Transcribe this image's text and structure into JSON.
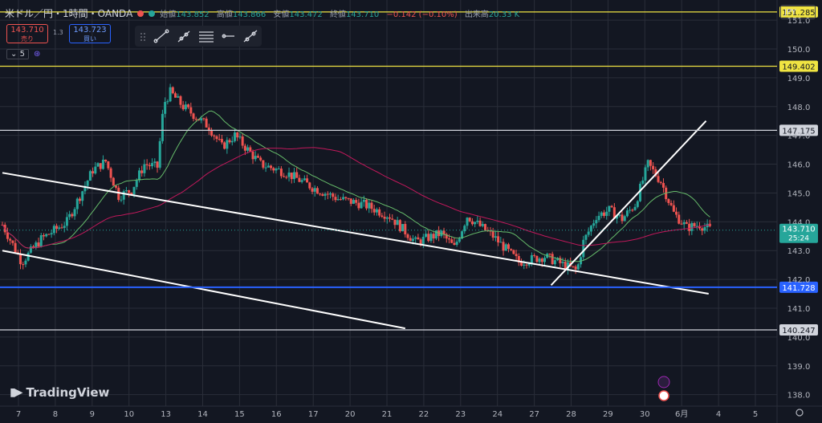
{
  "header": {
    "symbol": "米ドル／円・1時間・OANDA",
    "open_label": "始値",
    "open": "143.852",
    "high_label": "高値",
    "high": "143.866",
    "low_label": "安値",
    "low": "143.472",
    "close_label": "終値",
    "close": "143.710",
    "change": "−0.142 (−0.10%)",
    "volume_label": "出来高",
    "volume": "20.33 K",
    "sell_price": "143.710",
    "sell_label": "売り",
    "buy_price": "143.723",
    "buy_label": "買い",
    "spread": "1.3",
    "indicator_value": "5",
    "currency": "JPY"
  },
  "logo_text": "TradingView",
  "colors": {
    "up": "#26a69a",
    "down": "#ef5350",
    "bg": "#131722",
    "grid": "#2a2e39",
    "ma_short": "#66bb6a",
    "ma_long": "#c2185b",
    "yellow": "#f0e442",
    "blue": "#2962ff"
  },
  "chart_data": {
    "type": "candlestick",
    "ylim": [
      137.6,
      151.7
    ],
    "yticks": [
      138.0,
      139.0,
      140.0,
      141.0,
      142.0,
      143.0,
      144.0,
      145.0,
      146.0,
      147.0,
      148.0,
      149.0,
      150.0,
      151.0
    ],
    "x_tick_labels": [
      "7",
      "8",
      "9",
      "10",
      "13",
      "14",
      "15",
      "16",
      "17",
      "20",
      "21",
      "22",
      "23",
      "24",
      "27",
      "28",
      "29",
      "30",
      "6月",
      "4",
      "5"
    ],
    "current_price": {
      "value": 143.71,
      "label": "143.710",
      "countdown": "25:24"
    },
    "price_path": [
      [
        0,
        143.9
      ],
      [
        1.5,
        142.6
      ],
      [
        3,
        143.4
      ],
      [
        5,
        144.0
      ],
      [
        7,
        145.8
      ],
      [
        8,
        146.1
      ],
      [
        9,
        144.9
      ],
      [
        10,
        145.1
      ],
      [
        11,
        146.0
      ],
      [
        12,
        145.9
      ],
      [
        12.5,
        148.1
      ],
      [
        13,
        148.5
      ],
      [
        14,
        148.0
      ],
      [
        16,
        147.3
      ],
      [
        17,
        146.6
      ],
      [
        18,
        147.0
      ],
      [
        20,
        146.0
      ],
      [
        22,
        145.7
      ],
      [
        24,
        145.2
      ],
      [
        26,
        144.8
      ],
      [
        28,
        144.6
      ],
      [
        30,
        144.2
      ],
      [
        32,
        143.3
      ],
      [
        34,
        143.6
      ],
      [
        35,
        143.1
      ],
      [
        36,
        144.2
      ],
      [
        38,
        143.5
      ],
      [
        40,
        142.6
      ],
      [
        42,
        142.8
      ],
      [
        43,
        142.6
      ],
      [
        44,
        142.4
      ],
      [
        44.5,
        142.3
      ],
      [
        45,
        143.3
      ],
      [
        46,
        144.2
      ],
      [
        47,
        144.4
      ],
      [
        48,
        144.1
      ],
      [
        49,
        144.6
      ],
      [
        50,
        146.0
      ],
      [
        51,
        145.4
      ],
      [
        52,
        144.3
      ],
      [
        53,
        143.8
      ],
      [
        54,
        143.9
      ],
      [
        55,
        143.7
      ]
    ],
    "horizontal_levels": [
      {
        "value": 151.285,
        "label": "151.285",
        "kind": "yellow"
      },
      {
        "value": 149.402,
        "label": "149.402",
        "kind": "yellow"
      },
      {
        "value": 147.175,
        "label": "147.175",
        "kind": "white"
      },
      {
        "value": 141.728,
        "label": "141.728",
        "kind": "blue"
      },
      {
        "value": 140.247,
        "label": "140.247",
        "kind": "white"
      }
    ],
    "trend_lines": [
      {
        "x1": 0,
        "y1": 145.7,
        "x2": 54.7,
        "y2": 141.5
      },
      {
        "x1": 0,
        "y1": 143.0,
        "x2": 31.2,
        "y2": 140.3
      },
      {
        "x1": 42.5,
        "y1": 141.8,
        "x2": 54.5,
        "y2": 147.5
      }
    ]
  }
}
